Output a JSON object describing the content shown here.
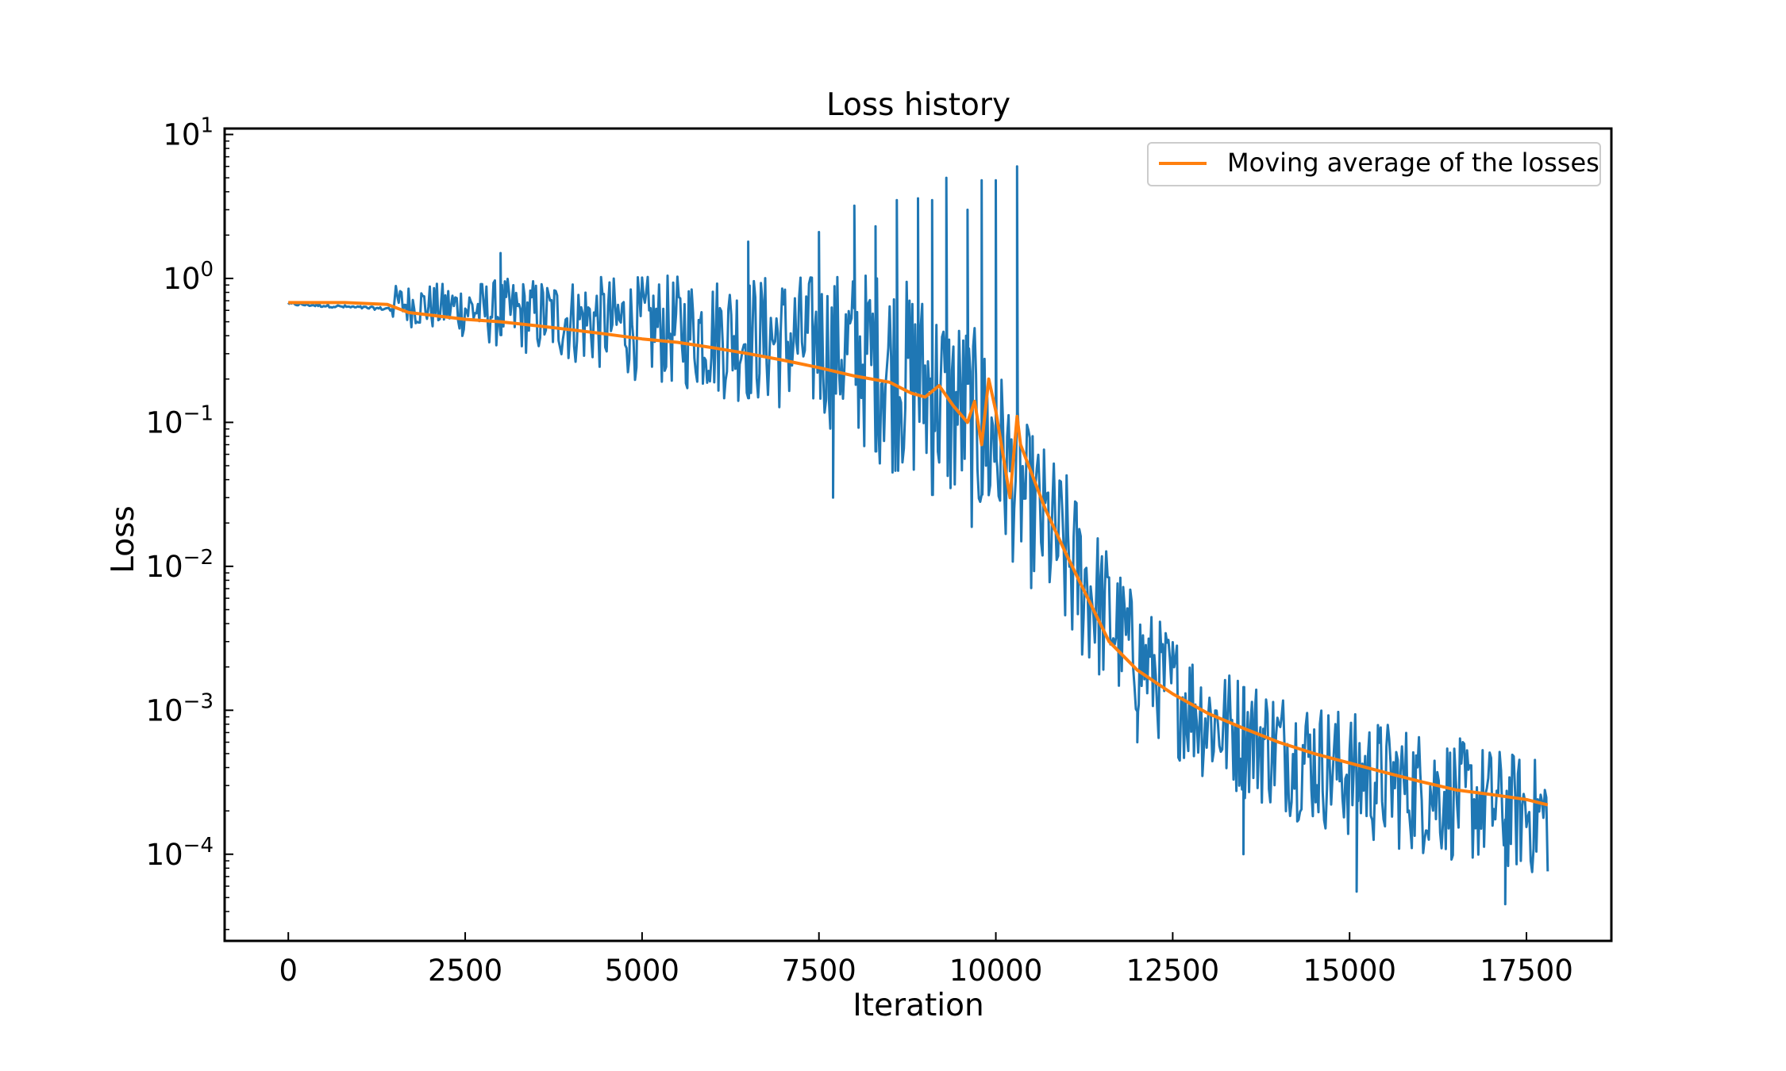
{
  "chart_data": {
    "type": "line",
    "title": "Loss history",
    "xlabel": "Iteration",
    "ylabel": "Loss",
    "yscale": "log",
    "xlim": [
      -900,
      18700
    ],
    "ylim": [
      2.5e-05,
      11
    ],
    "x_ticks": [
      {
        "value": 0,
        "label": "0"
      },
      {
        "value": 2500,
        "label": "2500"
      },
      {
        "value": 5000,
        "label": "5000"
      },
      {
        "value": 7500,
        "label": "7500"
      },
      {
        "value": 10000,
        "label": "10000"
      },
      {
        "value": 12500,
        "label": "12500"
      },
      {
        "value": 15000,
        "label": "15000"
      },
      {
        "value": 17500,
        "label": "17500"
      }
    ],
    "y_ticks": [
      {
        "value": 10,
        "base": "10",
        "exp": "1"
      },
      {
        "value": 1,
        "base": "10",
        "exp": "0"
      },
      {
        "value": 0.1,
        "base": "10",
        "exp": "−1"
      },
      {
        "value": 0.01,
        "base": "10",
        "exp": "−2"
      },
      {
        "value": 0.001,
        "base": "10",
        "exp": "−3"
      },
      {
        "value": 0.0001,
        "base": "10",
        "exp": "−4"
      }
    ],
    "legend": {
      "position": "upper right"
    },
    "grid": false,
    "series": [
      {
        "color": "#1f77b4",
        "kind": "raw loss per iteration",
        "envelope": {
          "x": [
            0,
            1400,
            1500,
            2500,
            3000,
            5000,
            7500,
            8500,
            9500,
            10000,
            10300,
            11000,
            12000,
            13000,
            15000,
            17800
          ],
          "upper": [
            0.7,
            0.66,
            0.9,
            0.95,
            1.0,
            1.05,
            1.1,
            1.2,
            0.6,
            0.3,
            0.12,
            0.045,
            0.006,
            0.0022,
            0.001,
            0.00045
          ],
          "lower": [
            0.65,
            0.6,
            0.48,
            0.38,
            0.32,
            0.19,
            0.1,
            0.045,
            0.02,
            0.012,
            0.01,
            0.0025,
            0.0008,
            0.0003,
            0.00012,
            6.5e-05
          ]
        },
        "spikes": [
          {
            "x": 3000,
            "y": 1.5
          },
          {
            "x": 6500,
            "y": 1.8
          },
          {
            "x": 7500,
            "y": 2.1
          },
          {
            "x": 8000,
            "y": 3.2
          },
          {
            "x": 8300,
            "y": 2.3
          },
          {
            "x": 8600,
            "y": 3.5
          },
          {
            "x": 8900,
            "y": 3.6
          },
          {
            "x": 9100,
            "y": 3.5
          },
          {
            "x": 9300,
            "y": 5.0
          },
          {
            "x": 9600,
            "y": 3.0
          },
          {
            "x": 9800,
            "y": 4.8
          },
          {
            "x": 10000,
            "y": 4.8
          },
          {
            "x": 10300,
            "y": 6.0
          }
        ],
        "dips": [
          {
            "x": 7700,
            "y": 0.03
          },
          {
            "x": 10250,
            "y": 0.009
          },
          {
            "x": 12000,
            "y": 0.0006
          },
          {
            "x": 13500,
            "y": 0.0001
          },
          {
            "x": 15100,
            "y": 5.5e-05
          },
          {
            "x": 17200,
            "y": 4.5e-05
          }
        ]
      },
      {
        "name": "Moving average of the losses",
        "color": "#ff7f0e",
        "x": [
          0,
          800,
          1400,
          1700,
          2500,
          3000,
          3500,
          4000,
          4500,
          5000,
          5500,
          6000,
          6500,
          7000,
          7500,
          8000,
          8500,
          8800,
          9000,
          9200,
          9400,
          9600,
          9700,
          9800,
          9900,
          10000,
          10100,
          10200,
          10300,
          10350,
          10500,
          10700,
          11000,
          11300,
          11600,
          12000,
          12500,
          13000,
          13500,
          14000,
          14500,
          15000,
          15500,
          16000,
          16500,
          17000,
          17500,
          17800
        ],
        "y": [
          0.68,
          0.68,
          0.66,
          0.58,
          0.52,
          0.5,
          0.47,
          0.44,
          0.41,
          0.38,
          0.36,
          0.33,
          0.3,
          0.27,
          0.24,
          0.21,
          0.19,
          0.16,
          0.15,
          0.18,
          0.13,
          0.1,
          0.14,
          0.07,
          0.2,
          0.12,
          0.06,
          0.03,
          0.11,
          0.07,
          0.045,
          0.025,
          0.012,
          0.006,
          0.003,
          0.0019,
          0.0013,
          0.00095,
          0.00075,
          0.0006,
          0.0005,
          0.00043,
          0.00037,
          0.00032,
          0.00028,
          0.00026,
          0.00024,
          0.00022
        ]
      }
    ]
  }
}
